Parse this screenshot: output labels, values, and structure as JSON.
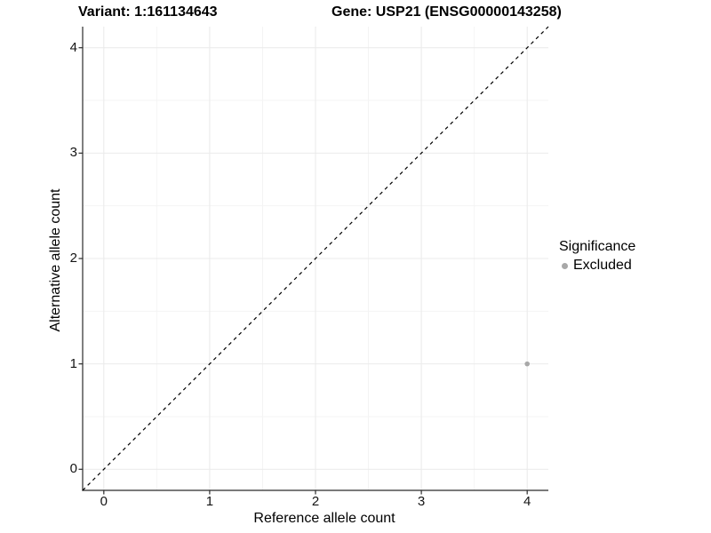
{
  "chart_data": {
    "type": "scatter",
    "title_variant": "Variant: 1:161134643",
    "title_gene": "Gene: USP21 (ENSG00000143258)",
    "xlabel": "Reference allele count",
    "ylabel": "Alternative allele count",
    "xlim": [
      -0.2,
      4.2
    ],
    "ylim": [
      -0.2,
      4.2
    ],
    "xticks": [
      0,
      1,
      2,
      3,
      4
    ],
    "yticks": [
      0,
      1,
      2,
      3,
      4
    ],
    "grid": {
      "major": true,
      "minor": true
    },
    "legend": {
      "title": "Significance",
      "position": "right",
      "items": [
        {
          "label": "Excluded",
          "color": "#a8a8a8"
        }
      ]
    },
    "series": [
      {
        "name": "Excluded",
        "color": "#a8a8a8",
        "point_radius": 2.8,
        "points": [
          {
            "x": 4,
            "y": 1
          }
        ]
      }
    ],
    "reference_line": {
      "kind": "identity",
      "slope": 1,
      "intercept": 0,
      "style": "dashed",
      "color": "#000000"
    }
  },
  "colors": {
    "background": "#ffffff",
    "grid_major": "#ebebeb",
    "grid_minor": "#f4f4f4",
    "axis_line": "#2b2b2b",
    "tick_mark": "#2b2b2b",
    "text": "#000000"
  }
}
